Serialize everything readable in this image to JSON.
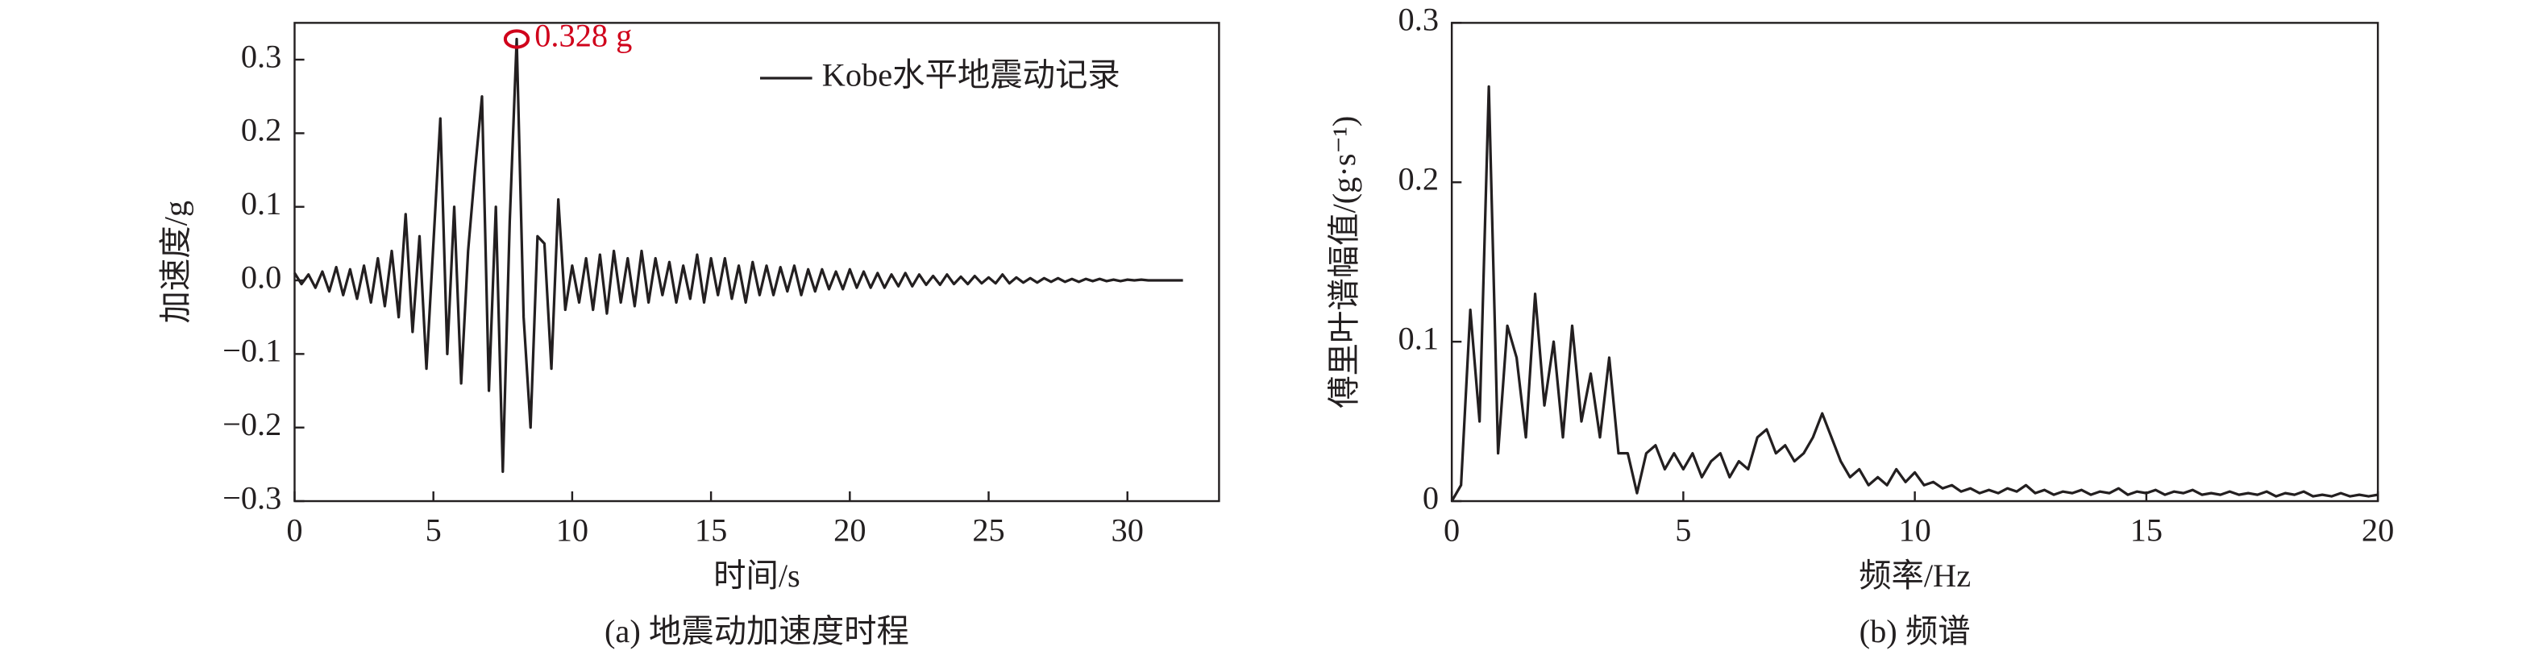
{
  "chart_data": [
    {
      "type": "line",
      "title": "(a) 地震动加速度时程",
      "xlabel": "时间/s",
      "ylabel": "加速度/g",
      "xlim": [
        0,
        33.3
      ],
      "ylim": [
        -0.3,
        0.35
      ],
      "xticks": [
        0,
        5,
        10,
        15,
        20,
        25,
        30
      ],
      "yticks": [
        {
          "value": -0.3,
          "label": "−0.3"
        },
        {
          "value": -0.2,
          "label": "−0.2"
        },
        {
          "value": -0.1,
          "label": "−0.1"
        },
        {
          "value": 0,
          "label": "0.0"
        },
        0.1,
        0.2,
        0.3
      ],
      "legend": "upper right",
      "annotations": [
        {
          "text": "0.328 g",
          "x": 8.0,
          "y": 0.328,
          "color": "#d0021b"
        }
      ],
      "x": [
        0,
        0.25,
        0.5,
        0.75,
        1,
        1.25,
        1.5,
        1.75,
        2,
        2.25,
        2.5,
        2.75,
        3,
        3.25,
        3.5,
        3.75,
        4,
        4.25,
        4.5,
        4.75,
        5,
        5.25,
        5.5,
        5.75,
        6,
        6.25,
        6.5,
        6.75,
        7,
        7.25,
        7.5,
        7.75,
        8,
        8.25,
        8.5,
        8.75,
        9,
        9.25,
        9.5,
        9.75,
        10,
        10.25,
        10.5,
        10.75,
        11,
        11.25,
        11.5,
        11.75,
        12,
        12.25,
        12.5,
        12.75,
        13,
        13.25,
        13.5,
        13.75,
        14,
        14.25,
        14.5,
        14.75,
        15,
        15.25,
        15.5,
        15.75,
        16,
        16.25,
        16.5,
        16.75,
        17,
        17.25,
        17.5,
        17.75,
        18,
        18.25,
        18.5,
        18.75,
        19,
        19.25,
        19.5,
        19.75,
        20,
        20.25,
        20.5,
        20.75,
        21,
        21.25,
        21.5,
        21.75,
        22,
        22.25,
        22.5,
        22.75,
        23,
        23.25,
        23.5,
        23.75,
        24,
        24.25,
        24.5,
        24.75,
        25,
        25.25,
        25.5,
        25.75,
        26,
        26.25,
        26.5,
        26.75,
        27,
        27.25,
        27.5,
        27.75,
        28,
        28.25,
        28.5,
        28.75,
        29,
        29.25,
        29.5,
        29.75,
        30,
        30.25,
        30.5,
        30.75,
        31,
        31.25,
        31.5,
        31.75,
        32
      ],
      "series": [
        {
          "name": "Kobe水平地震动记录",
          "color": "#231f20",
          "values": [
            0.01,
            -0.005,
            0.008,
            -0.01,
            0.012,
            -0.015,
            0.018,
            -0.02,
            0.015,
            -0.025,
            0.02,
            -0.03,
            0.03,
            -0.035,
            0.04,
            -0.05,
            0.09,
            -0.07,
            0.06,
            -0.12,
            0.05,
            0.22,
            -0.1,
            0.1,
            -0.14,
            0.04,
            0.15,
            0.25,
            -0.15,
            0.1,
            -0.26,
            0.08,
            0.328,
            -0.05,
            -0.2,
            0.06,
            0.05,
            -0.12,
            0.11,
            -0.04,
            0.02,
            -0.03,
            0.03,
            -0.04,
            0.035,
            -0.045,
            0.04,
            -0.03,
            0.03,
            -0.035,
            0.04,
            -0.03,
            0.03,
            -0.02,
            0.025,
            -0.03,
            0.02,
            -0.025,
            0.035,
            -0.03,
            0.03,
            -0.02,
            0.03,
            -0.025,
            0.02,
            -0.03,
            0.025,
            -0.02,
            0.02,
            -0.02,
            0.018,
            -0.015,
            0.02,
            -0.02,
            0.015,
            -0.015,
            0.015,
            -0.012,
            0.012,
            -0.012,
            0.015,
            -0.01,
            0.012,
            -0.01,
            0.01,
            -0.01,
            0.008,
            -0.008,
            0.01,
            -0.008,
            0.008,
            -0.006,
            0.006,
            -0.006,
            0.008,
            -0.005,
            0.005,
            -0.005,
            0.006,
            -0.004,
            0.004,
            -0.004,
            0.008,
            -0.004,
            0.004,
            -0.003,
            0.003,
            -0.003,
            0.003,
            -0.002,
            0.003,
            -0.002,
            0.002,
            -0.002,
            0.002,
            -0.001,
            0.002,
            -0.001,
            0.001,
            -0.001,
            0.001,
            0,
            0.001,
            0,
            0,
            0,
            0,
            0,
            0
          ]
        }
      ]
    },
    {
      "type": "line",
      "title": "(b) 频谱",
      "xlabel": "频率/Hz",
      "ylabel": "傅里叶谱幅值/(g·s⁻¹)",
      "xlim": [
        0,
        20
      ],
      "ylim": [
        0,
        0.3
      ],
      "xticks": [
        0,
        5,
        10,
        15,
        20
      ],
      "yticks": [
        0,
        0.1,
        0.2,
        0.3
      ],
      "x": [
        0,
        0.2,
        0.4,
        0.6,
        0.8,
        1,
        1.2,
        1.4,
        1.6,
        1.8,
        2,
        2.2,
        2.4,
        2.6,
        2.8,
        3,
        3.2,
        3.4,
        3.6,
        3.8,
        4,
        4.2,
        4.4,
        4.6,
        4.8,
        5,
        5.2,
        5.4,
        5.6,
        5.8,
        6,
        6.2,
        6.4,
        6.6,
        6.8,
        7,
        7.2,
        7.4,
        7.6,
        7.8,
        8,
        8.2,
        8.4,
        8.6,
        8.8,
        9,
        9.2,
        9.4,
        9.6,
        9.8,
        10,
        10.2,
        10.4,
        10.6,
        10.8,
        11,
        11.2,
        11.4,
        11.6,
        11.8,
        12,
        12.2,
        12.4,
        12.6,
        12.8,
        13,
        13.2,
        13.4,
        13.6,
        13.8,
        14,
        14.2,
        14.4,
        14.6,
        14.8,
        15,
        15.2,
        15.4,
        15.6,
        15.8,
        16,
        16.2,
        16.4,
        16.6,
        16.8,
        17,
        17.2,
        17.4,
        17.6,
        17.8,
        18,
        18.2,
        18.4,
        18.6,
        18.8,
        19,
        19.2,
        19.4,
        19.6,
        19.8,
        20
      ],
      "series": [
        {
          "color": "#231f20",
          "values": [
            0,
            0.01,
            0.12,
            0.05,
            0.26,
            0.03,
            0.11,
            0.09,
            0.04,
            0.13,
            0.06,
            0.1,
            0.04,
            0.11,
            0.05,
            0.08,
            0.04,
            0.09,
            0.03,
            0.03,
            0.005,
            0.03,
            0.035,
            0.02,
            0.03,
            0.02,
            0.03,
            0.015,
            0.025,
            0.03,
            0.015,
            0.025,
            0.02,
            0.04,
            0.045,
            0.03,
            0.035,
            0.025,
            0.03,
            0.04,
            0.055,
            0.04,
            0.025,
            0.015,
            0.02,
            0.01,
            0.015,
            0.01,
            0.02,
            0.012,
            0.018,
            0.01,
            0.012,
            0.008,
            0.01,
            0.006,
            0.008,
            0.005,
            0.007,
            0.005,
            0.008,
            0.006,
            0.01,
            0.005,
            0.007,
            0.004,
            0.006,
            0.005,
            0.007,
            0.004,
            0.006,
            0.005,
            0.008,
            0.004,
            0.006,
            0.005,
            0.007,
            0.004,
            0.006,
            0.005,
            0.007,
            0.004,
            0.005,
            0.004,
            0.006,
            0.004,
            0.005,
            0.004,
            0.006,
            0.003,
            0.005,
            0.004,
            0.006,
            0.003,
            0.004,
            0.003,
            0.005,
            0.003,
            0.004,
            0.003,
            0.004
          ]
        }
      ]
    }
  ]
}
